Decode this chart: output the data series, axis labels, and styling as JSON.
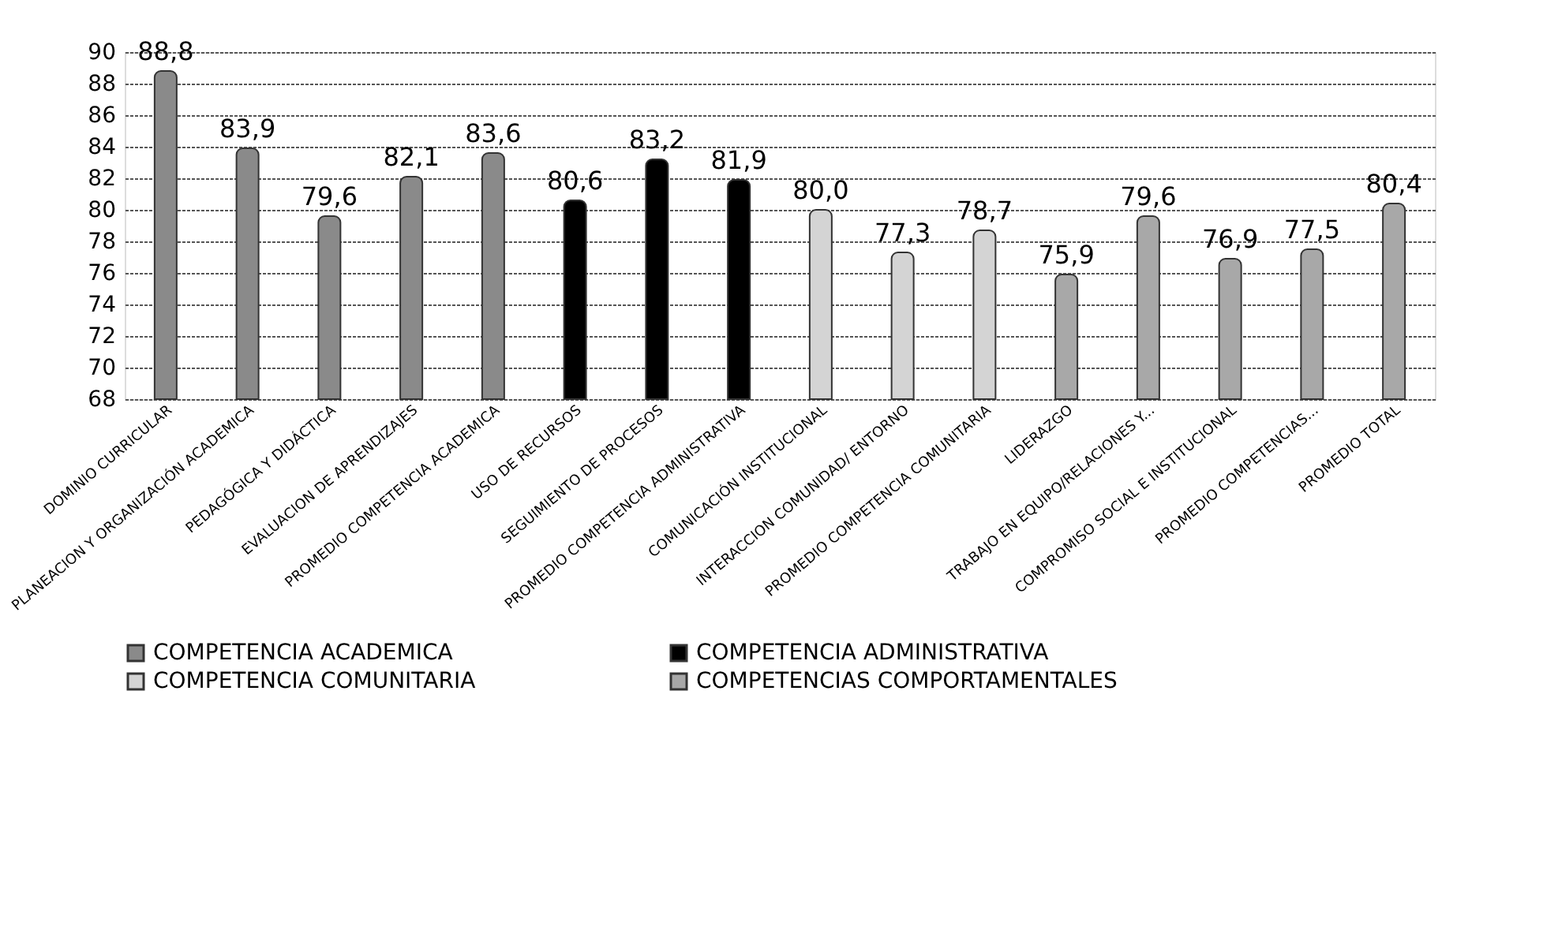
{
  "chart_data": {
    "type": "bar",
    "categories": [
      "DOMINIO CURRICULAR",
      "PLANEACION Y ORGANIZACIÓN ACADEMICA",
      "PEDAGÓGICA Y DIDÁCTICA",
      "EVALUACION DE APRENDIZAJES",
      "PROMEDIO COMPETENCIA ACADEMICA",
      "USO DE RECURSOS",
      "SEGUIMIENTO DE PROCESOS",
      "PROMEDIO COMPETENCIA ADMINISTRATIVA",
      "COMUNICACIÓN INSTITUCIONAL",
      "INTERACCION COMUNIDAD/ ENTORNO",
      "PROMEDIO COMPETENCIA COMUNITARIA",
      "LIDERAZGO",
      "TRABAJO EN EQUIPO/RELACIONES Y...",
      "COMPROMISO SOCIAL E INSTITUCIONAL",
      "PROMEDIO COMPETENCIAS...",
      "PROMEDIO TOTAL"
    ],
    "series": [
      {
        "name": "COMPETENCIA ACADEMICA",
        "color": "#8a8a8a",
        "values": [
          88.8,
          83.9,
          79.6,
          82.1,
          83.6,
          null,
          null,
          null,
          null,
          null,
          null,
          null,
          null,
          null,
          null,
          null
        ],
        "value_labels": [
          "88,8",
          "83,9",
          "79,6",
          "82,1",
          "83,6",
          null,
          null,
          null,
          null,
          null,
          null,
          null,
          null,
          null,
          null,
          null
        ]
      },
      {
        "name": "COMPETENCIA ADMINISTRATIVA",
        "color": "#000000",
        "values": [
          null,
          null,
          null,
          null,
          null,
          80.6,
          83.2,
          81.9,
          null,
          null,
          null,
          null,
          null,
          null,
          null,
          null
        ],
        "value_labels": [
          null,
          null,
          null,
          null,
          null,
          "80,6",
          "83,2",
          "81,9",
          null,
          null,
          null,
          null,
          null,
          null,
          null,
          null
        ]
      },
      {
        "name": "COMPETENCIA COMUNITARIA",
        "color": "#d4d4d4",
        "values": [
          null,
          null,
          null,
          null,
          null,
          null,
          null,
          null,
          80.0,
          77.3,
          78.7,
          null,
          null,
          null,
          null,
          null
        ],
        "value_labels": [
          null,
          null,
          null,
          null,
          null,
          null,
          null,
          null,
          "80,0",
          "77,3",
          "78,7",
          null,
          null,
          null,
          null,
          null
        ]
      },
      {
        "name": "COMPETENCIAS COMPORTAMENTALES",
        "color": "#a8a8a8",
        "values": [
          null,
          null,
          null,
          null,
          null,
          null,
          null,
          null,
          null,
          null,
          null,
          75.9,
          79.6,
          76.9,
          77.5,
          80.4
        ],
        "value_labels": [
          null,
          null,
          null,
          null,
          null,
          null,
          null,
          null,
          null,
          null,
          null,
          "75,9",
          "79,6",
          "76,9",
          "77,5",
          "80,4"
        ]
      }
    ],
    "ylim": [
      68,
      90
    ],
    "yticks": [
      68,
      70,
      72,
      74,
      76,
      78,
      80,
      82,
      84,
      86,
      88,
      90
    ],
    "grid": "y",
    "legend": "bottom"
  }
}
